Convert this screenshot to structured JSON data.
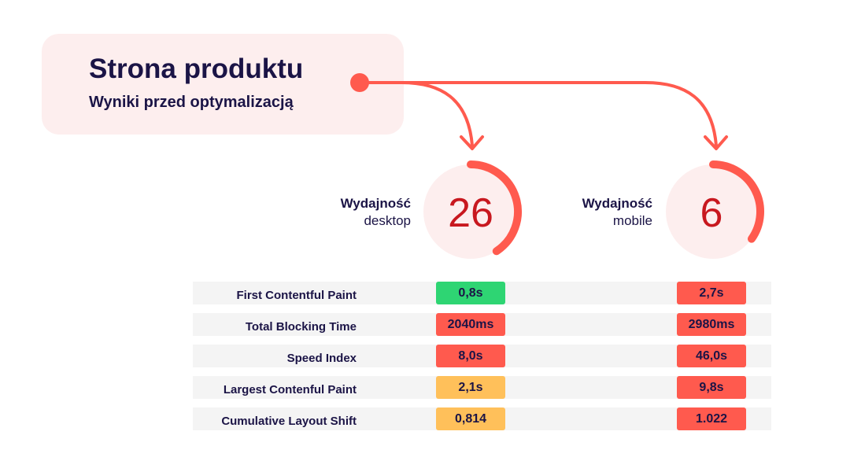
{
  "header": {
    "title": "Strona produktu",
    "subtitle": "Wyniki przed optymalizacją"
  },
  "colors": {
    "accent": "#ff5a4e",
    "card_bg": "#fdeeee",
    "text": "#1b1446",
    "score_text": "#c8181f",
    "good": "#2ed573",
    "average": "#ffc05a",
    "poor": "#ff5a4e"
  },
  "scores": {
    "desktop": {
      "label": "Wydajność",
      "device": "desktop",
      "value": "26",
      "score": 26
    },
    "mobile": {
      "label": "Wydajność",
      "device": "mobile",
      "value": "6",
      "score": 6
    }
  },
  "metrics": [
    {
      "name": "First Contentful Paint",
      "desktop": "0,8s",
      "desktop_status": "good",
      "mobile": "2,7s",
      "mobile_status": "poor"
    },
    {
      "name": "Total Blocking Time",
      "desktop": "2040ms",
      "desktop_status": "poor",
      "mobile": "2980ms",
      "mobile_status": "poor"
    },
    {
      "name": "Speed Index",
      "desktop": "8,0s",
      "desktop_status": "poor",
      "mobile": "46,0s",
      "mobile_status": "poor"
    },
    {
      "name": "Largest Contenful Paint",
      "desktop": "2,1s",
      "desktop_status": "average",
      "mobile": "9,8s",
      "mobile_status": "poor"
    },
    {
      "name": "Cumulative Layout Shift",
      "desktop": "0,814",
      "desktop_status": "average",
      "mobile": "1.022",
      "mobile_status": "poor"
    }
  ]
}
